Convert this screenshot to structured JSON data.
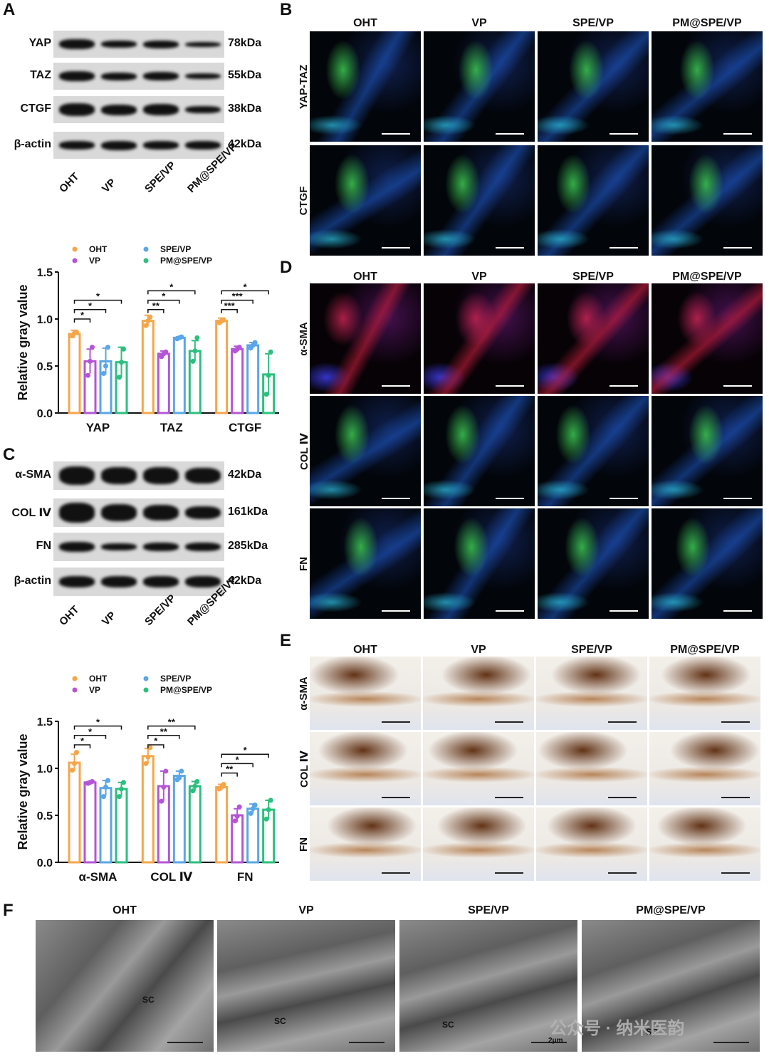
{
  "panels": {
    "A": "A",
    "B": "B",
    "C": "C",
    "D": "D",
    "E": "E",
    "F": "F"
  },
  "groups": [
    "OHT",
    "VP",
    "SPE/VP",
    "PM@SPE/VP"
  ],
  "blot_A": {
    "rows": [
      {
        "label": "YAP",
        "kda": "78kDa"
      },
      {
        "label": "TAZ",
        "kda": "55kDa"
      },
      {
        "label": "CTGF",
        "kda": "38kDa"
      },
      {
        "label": "β-actin",
        "kda": "42kDa"
      }
    ]
  },
  "blot_C": {
    "rows": [
      {
        "label": "α-SMA",
        "kda": "42kDa"
      },
      {
        "label": "COL Ⅳ",
        "kda": "161kDa"
      },
      {
        "label": "FN",
        "kda": "285kDa"
      },
      {
        "label": "β-actin",
        "kda": "42kDa"
      }
    ]
  },
  "panel_B": {
    "rows": [
      "YAP-TAZ",
      "CTGF"
    ]
  },
  "panel_D": {
    "rows": [
      "α-SMA",
      "COL Ⅳ",
      "FN"
    ]
  },
  "panel_E": {
    "rows": [
      "α-SMA",
      "COL Ⅳ",
      "FN"
    ]
  },
  "panel_F": {
    "sc_label": "SC",
    "scale_label": "2μm"
  },
  "colors": {
    "OHT": "#f5a64a",
    "VP": "#b455d6",
    "SPE/VP": "#5aa6e6",
    "PM@SPE/VP": "#2cbf7f"
  },
  "watermark": "公众号 · 纳米医韵",
  "chart_data": [
    {
      "type": "bar",
      "ylabel": "Relative gray value",
      "ylim": [
        0,
        1.5
      ],
      "yticks": [
        "0.0",
        "0.5",
        "1.0",
        "1.5"
      ],
      "categories": [
        "YAP",
        "TAZ",
        "CTGF"
      ],
      "series": [
        {
          "name": "OHT",
          "values": [
            0.84,
            0.98,
            0.98
          ],
          "err": [
            0.04,
            0.06,
            0.03
          ],
          "points": [
            [
              0.82,
              0.85,
              0.86
            ],
            [
              0.93,
              0.98,
              1.02
            ],
            [
              0.96,
              0.98,
              0.99
            ]
          ]
        },
        {
          "name": "VP",
          "values": [
            0.55,
            0.63,
            0.68
          ],
          "err": [
            0.13,
            0.03,
            0.03
          ],
          "points": [
            [
              0.4,
              0.55,
              0.7
            ],
            [
              0.6,
              0.63,
              0.65
            ],
            [
              0.66,
              0.68,
              0.7
            ]
          ]
        },
        {
          "name": "SPE/VP",
          "values": [
            0.55,
            0.8,
            0.72
          ],
          "err": [
            0.14,
            0.01,
            0.03
          ],
          "points": [
            [
              0.42,
              0.5,
              0.7
            ],
            [
              0.79,
              0.8,
              0.81
            ],
            [
              0.69,
              0.72,
              0.75
            ]
          ]
        },
        {
          "name": "PM@SPE/VP",
          "values": [
            0.54,
            0.66,
            0.41
          ],
          "err": [
            0.16,
            0.11,
            0.22
          ],
          "points": [
            [
              0.38,
              0.54,
              0.68
            ],
            [
              0.55,
              0.66,
              0.8
            ],
            [
              0.2,
              0.4,
              0.65
            ]
          ]
        }
      ],
      "significance": [
        {
          "category": 0,
          "from": 0,
          "to": 1,
          "label": "*",
          "y": 1.0
        },
        {
          "category": 0,
          "from": 0,
          "to": 2,
          "label": "*",
          "y": 1.1
        },
        {
          "category": 0,
          "from": 0,
          "to": 3,
          "label": "*",
          "y": 1.2
        },
        {
          "category": 1,
          "from": 0,
          "to": 1,
          "label": "**",
          "y": 1.1
        },
        {
          "category": 1,
          "from": 0,
          "to": 2,
          "label": "*",
          "y": 1.2
        },
        {
          "category": 1,
          "from": 0,
          "to": 3,
          "label": "*",
          "y": 1.3
        },
        {
          "category": 2,
          "from": 0,
          "to": 1,
          "label": "***",
          "y": 1.1
        },
        {
          "category": 2,
          "from": 0,
          "to": 2,
          "label": "***",
          "y": 1.2
        },
        {
          "category": 2,
          "from": 0,
          "to": 3,
          "label": "*",
          "y": 1.3
        }
      ],
      "legend": "top"
    },
    {
      "type": "bar",
      "ylabel": "Relative gray value",
      "ylim": [
        0,
        1.5
      ],
      "yticks": [
        "0.0",
        "0.5",
        "1.0",
        "1.5"
      ],
      "categories": [
        "α-SMA",
        "COL Ⅳ",
        "FN"
      ],
      "series": [
        {
          "name": "OHT",
          "values": [
            1.06,
            1.13,
            0.8
          ],
          "err": [
            0.09,
            0.08,
            0.03
          ],
          "points": [
            [
              0.98,
              1.05,
              1.17
            ],
            [
              1.05,
              1.12,
              1.22
            ],
            [
              0.78,
              0.8,
              0.83
            ]
          ]
        },
        {
          "name": "VP",
          "values": [
            0.85,
            0.81,
            0.5
          ],
          "err": [
            0.01,
            0.16,
            0.07
          ],
          "points": [
            [
              0.84,
              0.85,
              0.86
            ],
            [
              0.65,
              0.8,
              0.97
            ],
            [
              0.44,
              0.49,
              0.59
            ]
          ]
        },
        {
          "name": "SPE/VP",
          "values": [
            0.79,
            0.92,
            0.57
          ],
          "err": [
            0.08,
            0.05,
            0.05
          ],
          "points": [
            [
              0.7,
              0.8,
              0.87
            ],
            [
              0.88,
              0.9,
              0.97
            ],
            [
              0.52,
              0.57,
              0.61
            ]
          ]
        },
        {
          "name": "PM@SPE/VP",
          "values": [
            0.78,
            0.81,
            0.56
          ],
          "err": [
            0.07,
            0.05,
            0.1
          ],
          "points": [
            [
              0.7,
              0.78,
              0.85
            ],
            [
              0.76,
              0.81,
              0.86
            ],
            [
              0.46,
              0.56,
              0.66
            ]
          ]
        }
      ],
      "significance": [
        {
          "category": 0,
          "from": 0,
          "to": 1,
          "label": "*",
          "y": 1.25
        },
        {
          "category": 0,
          "from": 0,
          "to": 2,
          "label": "*",
          "y": 1.35
        },
        {
          "category": 0,
          "from": 0,
          "to": 3,
          "label": "*",
          "y": 1.45
        },
        {
          "category": 1,
          "from": 0,
          "to": 1,
          "label": "*",
          "y": 1.25
        },
        {
          "category": 1,
          "from": 0,
          "to": 2,
          "label": "**",
          "y": 1.35
        },
        {
          "category": 1,
          "from": 0,
          "to": 3,
          "label": "**",
          "y": 1.45
        },
        {
          "category": 2,
          "from": 0,
          "to": 1,
          "label": "**",
          "y": 0.95
        },
        {
          "category": 2,
          "from": 0,
          "to": 2,
          "label": "*",
          "y": 1.05
        },
        {
          "category": 2,
          "from": 0,
          "to": 3,
          "label": "*",
          "y": 1.15
        }
      ],
      "legend": "top"
    }
  ]
}
